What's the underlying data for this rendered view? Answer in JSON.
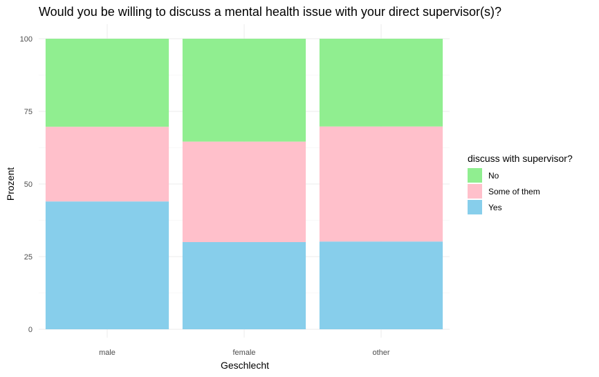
{
  "chart_data": {
    "type": "bar",
    "stacked": true,
    "title": "Would you be willing to discuss a mental health issue with your direct supervisor(s)?",
    "xlabel": "Geschlecht",
    "ylabel": "Prozent",
    "ylim": [
      0,
      100
    ],
    "yticks": [
      "0",
      "25",
      "50",
      "75",
      "100"
    ],
    "categories": [
      "male",
      "female",
      "other"
    ],
    "series": [
      {
        "name": "Yes",
        "color": "#87CEEB",
        "values": [
          44,
          30,
          30.2
        ]
      },
      {
        "name": "Some of them",
        "color": "#FFC0CB",
        "values": [
          25.7,
          34.6,
          39.6
        ]
      },
      {
        "name": "No",
        "color": "#90EE90",
        "values": [
          30.3,
          35.4,
          30.2
        ]
      }
    ],
    "legend": {
      "title": "discuss with supervisor?",
      "position": "right",
      "order": [
        "No",
        "Some of them",
        "Yes"
      ]
    },
    "grid": true
  }
}
